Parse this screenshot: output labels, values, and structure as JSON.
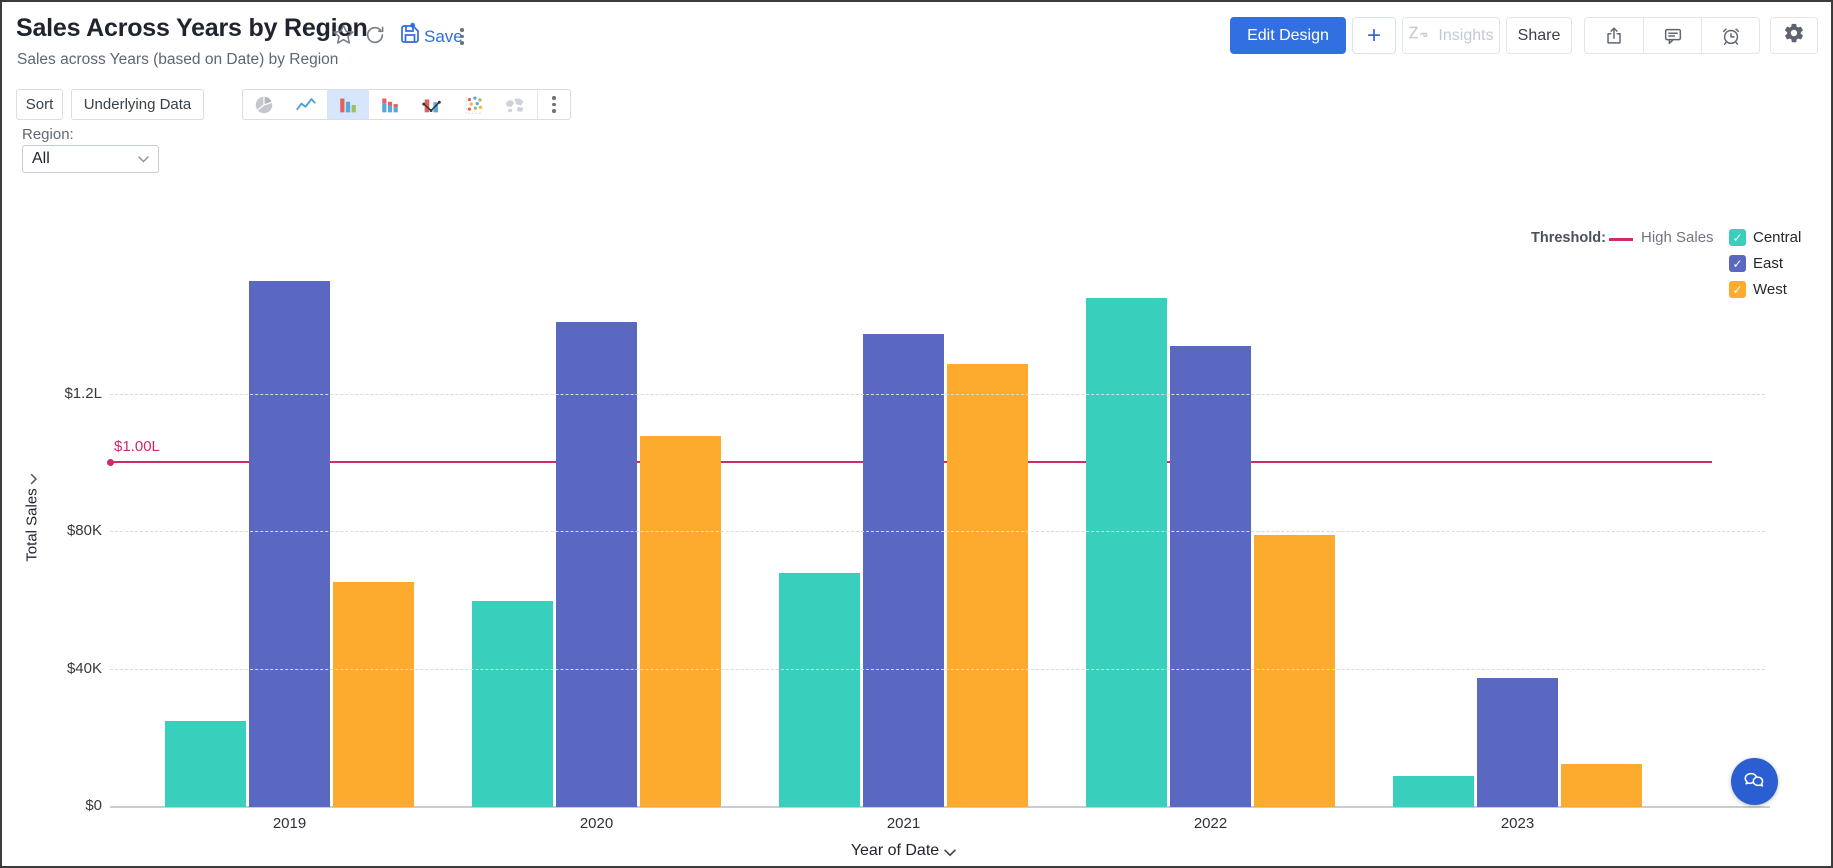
{
  "header": {
    "title": "Sales Across Years by Region",
    "subtitle": "Sales across Years (based on Date) by Region",
    "save_label": "Save",
    "buttons": {
      "edit_design": "Edit Design",
      "plus": "+",
      "insights": "Insights",
      "share": "Share"
    }
  },
  "toolbar": {
    "sort": "Sort",
    "underlying_data": "Underlying Data"
  },
  "filter": {
    "label": "Region:",
    "value": "All"
  },
  "icons": {
    "check": "✓"
  },
  "colors": {
    "accent_blue": "#3270e2",
    "threshold_pink": "#cf2a6a"
  },
  "chart_data": {
    "type": "bar",
    "title": "Sales Across Years by Region",
    "categories": [
      "2019",
      "2020",
      "2021",
      "2022",
      "2023"
    ],
    "series": [
      {
        "name": "Central",
        "color": "#38cfbd",
        "values": [
          25000,
          60000,
          68000,
          148000,
          9000
        ]
      },
      {
        "name": "East",
        "color": "#5a68c2",
        "values": [
          153000,
          141000,
          137500,
          134000,
          37500
        ]
      },
      {
        "name": "West",
        "color": "#fcab2f",
        "values": [
          65500,
          108000,
          129000,
          79000,
          12500
        ]
      }
    ],
    "xlabel": "Year of Date",
    "ylabel": "Total Sales",
    "y_ticks": [
      "$0",
      "$40K",
      "$80K",
      "$1.2L"
    ],
    "y_tick_values": [
      0,
      40000,
      80000,
      120000
    ],
    "ylim": [
      0,
      173000
    ],
    "grid": "horizontal-dashed",
    "legend_position": "top-right",
    "threshold": {
      "key_label": "Threshold:",
      "label": "High Sales",
      "value": 100000,
      "value_label": "$1.00L",
      "color": "#cf2a6a"
    }
  }
}
